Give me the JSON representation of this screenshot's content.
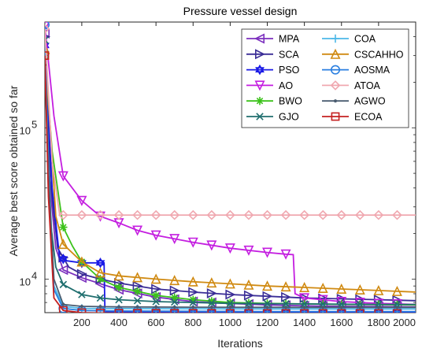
{
  "chart_data": {
    "type": "line",
    "title": "Pressure vessel design",
    "xlabel": "Iterations",
    "ylabel": "Average best score obtained so far",
    "xlim": [
      1,
      2000
    ],
    "ylim": [
      6000,
      500000
    ],
    "yscale": "log",
    "x_ticks": [
      200,
      400,
      600,
      800,
      1000,
      1200,
      1400,
      1600,
      1800,
      2000
    ],
    "x_tick_labels": [
      "200",
      "400",
      "600",
      "800",
      "1000",
      "1200",
      "1400",
      "1600",
      "1800",
      "2000"
    ],
    "y_ticks": [
      10000,
      100000
    ],
    "y_tick_base": "10",
    "y_tick_exponents": [
      "4",
      "5"
    ],
    "grid": false,
    "legend_position": "top-right",
    "legend_columns": 2,
    "series": [
      {
        "name": "MPA",
        "color": "#7B2FBE",
        "marker": "triangle-left",
        "points": [
          [
            1,
            420000
          ],
          [
            30,
            40000
          ],
          [
            60,
            16000
          ],
          [
            100,
            11500
          ],
          [
            200,
            10200
          ],
          [
            400,
            8500
          ],
          [
            600,
            7600
          ],
          [
            800,
            7100
          ],
          [
            1000,
            6900
          ],
          [
            1200,
            6750
          ],
          [
            1400,
            6650
          ],
          [
            1600,
            6600
          ],
          [
            1800,
            6580
          ],
          [
            2000,
            6560
          ]
        ]
      },
      {
        "name": "SCA",
        "color": "#3A2D96",
        "marker": "triangle-right",
        "points": [
          [
            1,
            400000
          ],
          [
            30,
            45000
          ],
          [
            70,
            16000
          ],
          [
            130,
            12000
          ],
          [
            200,
            10800
          ],
          [
            300,
            10000
          ],
          [
            400,
            9400
          ],
          [
            600,
            8600
          ],
          [
            800,
            8200
          ],
          [
            1000,
            7900
          ],
          [
            1200,
            7700
          ],
          [
            1400,
            7500
          ],
          [
            1600,
            7400
          ],
          [
            1800,
            7300
          ],
          [
            2000,
            7200
          ]
        ]
      },
      {
        "name": "PSO",
        "color": "#1A1AE6",
        "marker": "hexagram",
        "points": [
          [
            1,
            350000
          ],
          [
            40,
            40000
          ],
          [
            80,
            14000
          ],
          [
            120,
            13200
          ],
          [
            200,
            12800
          ],
          [
            320,
            12800
          ],
          [
            325,
            6100
          ],
          [
            400,
            6050
          ],
          [
            800,
            6020
          ],
          [
            1200,
            6010
          ],
          [
            1600,
            6000
          ],
          [
            2000,
            6000
          ]
        ]
      },
      {
        "name": "AO",
        "color": "#C41EE0",
        "marker": "triangle-down",
        "points": [
          [
            1,
            470000
          ],
          [
            50,
            120000
          ],
          [
            100,
            48000
          ],
          [
            200,
            33000
          ],
          [
            300,
            26000
          ],
          [
            400,
            23500
          ],
          [
            500,
            21000
          ],
          [
            600,
            19500
          ],
          [
            800,
            17500
          ],
          [
            1000,
            16000
          ],
          [
            1200,
            15000
          ],
          [
            1300,
            14600
          ],
          [
            1340,
            14500
          ],
          [
            1350,
            8000
          ],
          [
            1400,
            7500
          ],
          [
            1600,
            7100
          ],
          [
            1800,
            6900
          ],
          [
            2000,
            6800
          ]
        ]
      },
      {
        "name": "BWO",
        "color": "#3BC21A",
        "marker": "asterisk",
        "points": [
          [
            1,
            300000
          ],
          [
            40,
            70000
          ],
          [
            100,
            22000
          ],
          [
            150,
            16500
          ],
          [
            200,
            13000
          ],
          [
            300,
            10000
          ],
          [
            400,
            8800
          ],
          [
            600,
            7800
          ],
          [
            800,
            7300
          ],
          [
            1000,
            7000
          ],
          [
            1200,
            6900
          ],
          [
            1400,
            6850
          ],
          [
            1600,
            6800
          ],
          [
            1800,
            6780
          ],
          [
            2000,
            6750
          ]
        ]
      },
      {
        "name": "GJO",
        "color": "#1F6E6E",
        "marker": "x",
        "points": [
          [
            1,
            380000
          ],
          [
            30,
            25000
          ],
          [
            60,
            12000
          ],
          [
            100,
            9200
          ],
          [
            200,
            7900
          ],
          [
            300,
            7500
          ],
          [
            400,
            7300
          ],
          [
            600,
            7100
          ],
          [
            800,
            7000
          ],
          [
            1000,
            6900
          ],
          [
            1200,
            6880
          ],
          [
            1400,
            6850
          ],
          [
            1600,
            6820
          ],
          [
            1800,
            6800
          ],
          [
            2000,
            6800
          ]
        ]
      },
      {
        "name": "COA",
        "color": "#4CB8E8",
        "marker": "plus",
        "points": [
          [
            1,
            320000
          ],
          [
            20,
            60000
          ],
          [
            50,
            9000
          ],
          [
            100,
            6600
          ],
          [
            200,
            6400
          ],
          [
            400,
            6380
          ],
          [
            800,
            6360
          ],
          [
            1200,
            6350
          ],
          [
            1600,
            6350
          ],
          [
            2000,
            6350
          ]
        ]
      },
      {
        "name": "CSCAHHO",
        "color": "#D08A12",
        "marker": "triangle-up",
        "points": [
          [
            1,
            330000
          ],
          [
            30,
            100000
          ],
          [
            60,
            26000
          ],
          [
            100,
            17000
          ],
          [
            200,
            13000
          ],
          [
            300,
            11000
          ],
          [
            400,
            10500
          ],
          [
            600,
            10000
          ],
          [
            800,
            9600
          ],
          [
            1000,
            9300
          ],
          [
            1200,
            9000
          ],
          [
            1400,
            8800
          ],
          [
            1600,
            8600
          ],
          [
            1800,
            8400
          ],
          [
            2000,
            8200
          ]
        ]
      },
      {
        "name": "AOSMA",
        "color": "#2A7FE0",
        "marker": "circle",
        "points": [
          [
            1,
            480000
          ],
          [
            20,
            50000
          ],
          [
            50,
            8500
          ],
          [
            100,
            6400
          ],
          [
            200,
            6200
          ],
          [
            400,
            6150
          ],
          [
            800,
            6120
          ],
          [
            1200,
            6100
          ],
          [
            1600,
            6100
          ],
          [
            2000,
            6100
          ]
        ]
      },
      {
        "name": "ATOA",
        "color": "#F0A8B0",
        "marker": "diamond",
        "points": [
          [
            1,
            450000
          ],
          [
            40,
            60000
          ],
          [
            80,
            27000
          ],
          [
            100,
            26500
          ],
          [
            200,
            26500
          ],
          [
            400,
            26500
          ],
          [
            800,
            26500
          ],
          [
            1200,
            26500
          ],
          [
            1600,
            26500
          ],
          [
            2000,
            26500
          ]
        ]
      },
      {
        "name": "AGWO",
        "color": "#4A5C70",
        "marker": "dot",
        "points": [
          [
            1,
            260000
          ],
          [
            20,
            50000
          ],
          [
            50,
            10000
          ],
          [
            100,
            6800
          ],
          [
            200,
            6600
          ],
          [
            400,
            6550
          ],
          [
            800,
            6520
          ],
          [
            1200,
            6500
          ],
          [
            1600,
            6500
          ],
          [
            2000,
            6500
          ]
        ]
      },
      {
        "name": "ECOA",
        "color": "#C42020",
        "marker": "square",
        "points": [
          [
            1,
            300000
          ],
          [
            20,
            35000
          ],
          [
            50,
            7500
          ],
          [
            100,
            6200
          ],
          [
            200,
            6000
          ],
          [
            400,
            5950
          ],
          [
            800,
            5940
          ],
          [
            1200,
            5930
          ],
          [
            1600,
            5930
          ],
          [
            2000,
            5930
          ]
        ]
      }
    ]
  }
}
